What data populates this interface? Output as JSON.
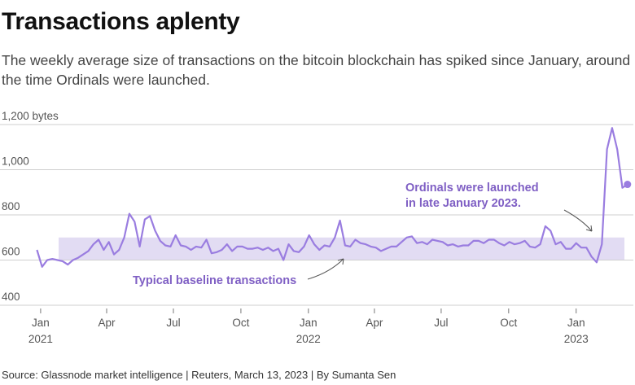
{
  "header": {
    "title": "Transactions aplenty",
    "subtitle": "The weekly average size of transactions on the bitcoin blockchain has spiked since January, around the time Ordinals were launched."
  },
  "footer": {
    "source": "Source: Glassnode market intelligence | Reuters, March 13, 2023 | By Sumanta Sen"
  },
  "colors": {
    "line": "#9a7de0",
    "band": "#e2dcf3",
    "annotation": "#7f5fc4",
    "grid": "#cfcfcf"
  },
  "chart_data": {
    "type": "line",
    "title": "Transactions aplenty",
    "ylabel": "bytes",
    "ylim": [
      400,
      1200
    ],
    "yticks": [
      {
        "value": 400,
        "label": "400"
      },
      {
        "value": 600,
        "label": "600"
      },
      {
        "value": 800,
        "label": "800"
      },
      {
        "value": 1000,
        "label": "1,000"
      },
      {
        "value": 1200,
        "label": "1,200 bytes"
      }
    ],
    "xlim": [
      "2020-12-21",
      "2023-03-20"
    ],
    "xticks": [
      {
        "date": "2021-01-01",
        "label": "Jan",
        "year": "2021"
      },
      {
        "date": "2021-04-01",
        "label": "Apr",
        "year": ""
      },
      {
        "date": "2021-07-01",
        "label": "Jul",
        "year": ""
      },
      {
        "date": "2021-10-01",
        "label": "Oct",
        "year": ""
      },
      {
        "date": "2022-01-01",
        "label": "Jan",
        "year": "2022"
      },
      {
        "date": "2022-04-01",
        "label": "Apr",
        "year": ""
      },
      {
        "date": "2022-07-01",
        "label": "Jul",
        "year": ""
      },
      {
        "date": "2022-10-01",
        "label": "Oct",
        "year": ""
      },
      {
        "date": "2023-01-01",
        "label": "Jan",
        "year": "2023"
      }
    ],
    "baseline_band": {
      "low": 600,
      "high": 700,
      "label": "Typical baseline transactions"
    },
    "annotations": [
      {
        "lines": [
          "Ordinals were launched",
          "in late January 2023."
        ]
      },
      {
        "lines": [
          "Typical baseline transactions"
        ]
      }
    ],
    "series": [
      {
        "points": [
          [
            "2020-12-27",
            645
          ],
          [
            "2021-01-03",
            570
          ],
          [
            "2021-01-10",
            600
          ],
          [
            "2021-01-17",
            605
          ],
          [
            "2021-01-24",
            600
          ],
          [
            "2021-01-31",
            595
          ],
          [
            "2021-02-07",
            580
          ],
          [
            "2021-02-14",
            600
          ],
          [
            "2021-02-21",
            610
          ],
          [
            "2021-02-28",
            625
          ],
          [
            "2021-03-07",
            640
          ],
          [
            "2021-03-14",
            670
          ],
          [
            "2021-03-21",
            690
          ],
          [
            "2021-03-28",
            645
          ],
          [
            "2021-04-04",
            680
          ],
          [
            "2021-04-11",
            625
          ],
          [
            "2021-04-18",
            645
          ],
          [
            "2021-04-25",
            700
          ],
          [
            "2021-05-02",
            805
          ],
          [
            "2021-05-09",
            770
          ],
          [
            "2021-05-16",
            660
          ],
          [
            "2021-05-23",
            780
          ],
          [
            "2021-05-30",
            795
          ],
          [
            "2021-06-06",
            730
          ],
          [
            "2021-06-13",
            685
          ],
          [
            "2021-06-20",
            665
          ],
          [
            "2021-06-27",
            660
          ],
          [
            "2021-07-04",
            710
          ],
          [
            "2021-07-11",
            665
          ],
          [
            "2021-07-18",
            660
          ],
          [
            "2021-07-25",
            645
          ],
          [
            "2021-08-01",
            660
          ],
          [
            "2021-08-08",
            655
          ],
          [
            "2021-08-15",
            690
          ],
          [
            "2021-08-22",
            630
          ],
          [
            "2021-08-29",
            635
          ],
          [
            "2021-09-05",
            645
          ],
          [
            "2021-09-12",
            670
          ],
          [
            "2021-09-19",
            640
          ],
          [
            "2021-09-26",
            660
          ],
          [
            "2021-10-03",
            660
          ],
          [
            "2021-10-10",
            650
          ],
          [
            "2021-10-17",
            650
          ],
          [
            "2021-10-24",
            655
          ],
          [
            "2021-10-31",
            645
          ],
          [
            "2021-11-07",
            655
          ],
          [
            "2021-11-14",
            640
          ],
          [
            "2021-11-21",
            650
          ],
          [
            "2021-11-28",
            600
          ],
          [
            "2021-12-05",
            670
          ],
          [
            "2021-12-12",
            640
          ],
          [
            "2021-12-19",
            635
          ],
          [
            "2021-12-26",
            660
          ],
          [
            "2022-01-02",
            710
          ],
          [
            "2022-01-09",
            670
          ],
          [
            "2022-01-16",
            645
          ],
          [
            "2022-01-23",
            665
          ],
          [
            "2022-01-30",
            660
          ],
          [
            "2022-02-06",
            700
          ],
          [
            "2022-02-13",
            775
          ],
          [
            "2022-02-20",
            665
          ],
          [
            "2022-02-27",
            660
          ],
          [
            "2022-03-06",
            690
          ],
          [
            "2022-03-13",
            675
          ],
          [
            "2022-03-20",
            670
          ],
          [
            "2022-03-27",
            660
          ],
          [
            "2022-04-03",
            655
          ],
          [
            "2022-04-10",
            640
          ],
          [
            "2022-04-17",
            650
          ],
          [
            "2022-04-24",
            660
          ],
          [
            "2022-05-01",
            660
          ],
          [
            "2022-05-08",
            680
          ],
          [
            "2022-05-15",
            700
          ],
          [
            "2022-05-22",
            705
          ],
          [
            "2022-05-29",
            675
          ],
          [
            "2022-06-05",
            680
          ],
          [
            "2022-06-12",
            670
          ],
          [
            "2022-06-19",
            690
          ],
          [
            "2022-06-26",
            685
          ],
          [
            "2022-07-03",
            680
          ],
          [
            "2022-07-10",
            665
          ],
          [
            "2022-07-17",
            670
          ],
          [
            "2022-07-24",
            660
          ],
          [
            "2022-07-31",
            665
          ],
          [
            "2022-08-07",
            665
          ],
          [
            "2022-08-14",
            685
          ],
          [
            "2022-08-21",
            685
          ],
          [
            "2022-08-28",
            675
          ],
          [
            "2022-09-04",
            690
          ],
          [
            "2022-09-11",
            690
          ],
          [
            "2022-09-18",
            675
          ],
          [
            "2022-09-25",
            665
          ],
          [
            "2022-10-02",
            680
          ],
          [
            "2022-10-09",
            670
          ],
          [
            "2022-10-16",
            675
          ],
          [
            "2022-10-23",
            685
          ],
          [
            "2022-10-30",
            660
          ],
          [
            "2022-11-06",
            655
          ],
          [
            "2022-11-13",
            670
          ],
          [
            "2022-11-20",
            750
          ],
          [
            "2022-11-27",
            730
          ],
          [
            "2022-12-04",
            670
          ],
          [
            "2022-12-11",
            680
          ],
          [
            "2022-12-18",
            650
          ],
          [
            "2022-12-25",
            650
          ],
          [
            "2023-01-01",
            675
          ],
          [
            "2023-01-08",
            655
          ],
          [
            "2023-01-15",
            655
          ],
          [
            "2023-01-22",
            615
          ],
          [
            "2023-01-29",
            590
          ],
          [
            "2023-02-05",
            670
          ],
          [
            "2023-02-12",
            1090
          ],
          [
            "2023-02-19",
            1185
          ],
          [
            "2023-02-26",
            1090
          ],
          [
            "2023-03-05",
            920
          ],
          [
            "2023-03-12",
            935
          ]
        ]
      }
    ]
  }
}
